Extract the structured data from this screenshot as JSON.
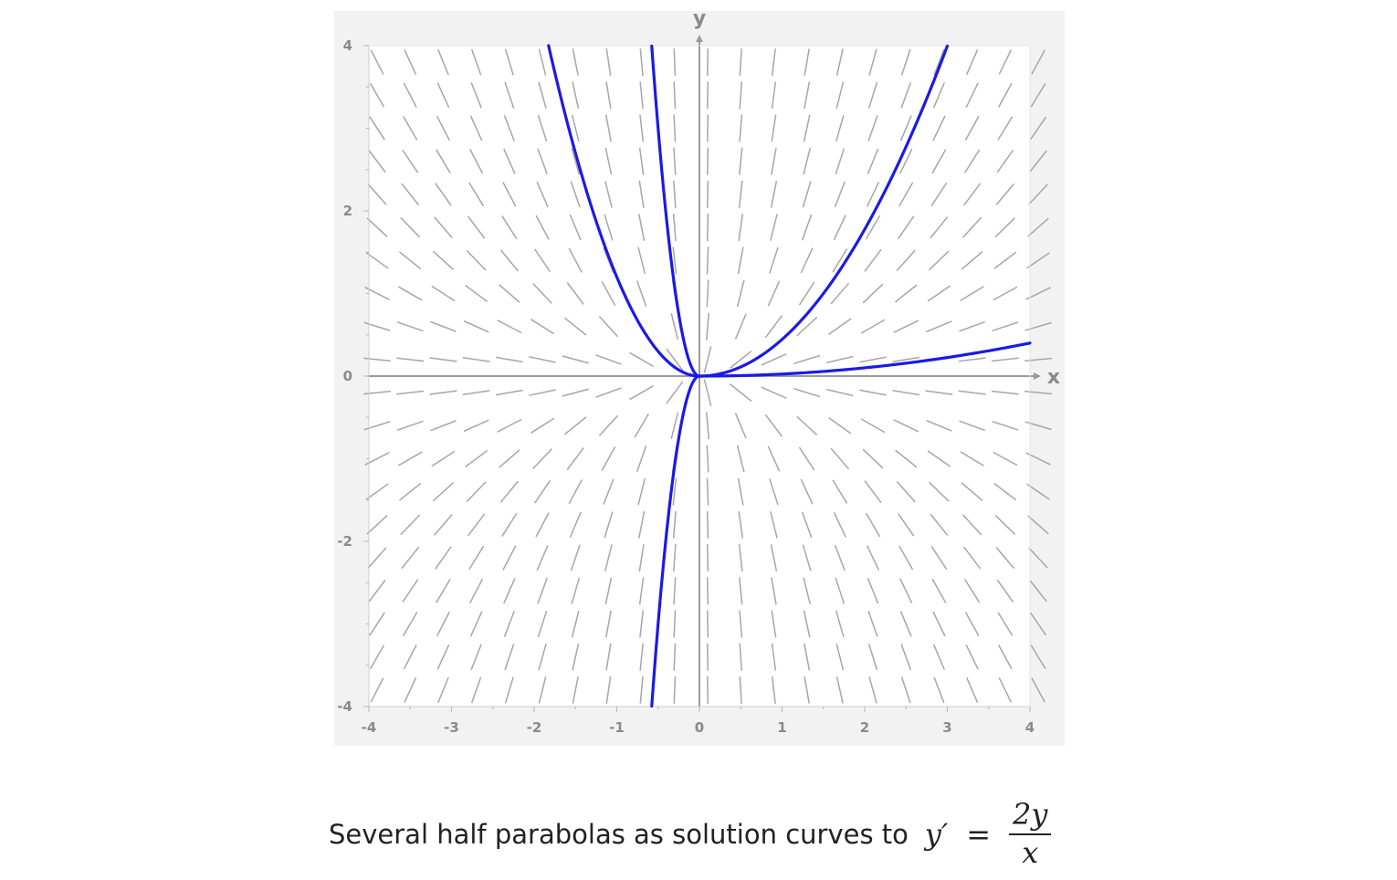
{
  "chart_data": {
    "type": "line",
    "subtype": "slope-field",
    "title": "",
    "xlabel": "x",
    "ylabel": "y",
    "xlim": [
      -4,
      4
    ],
    "ylim": [
      -4,
      4
    ],
    "x_ticks": [
      "-4",
      "-3",
      "-2",
      "-1",
      "0",
      "1",
      "2",
      "3",
      "4"
    ],
    "y_ticks": [
      "4",
      "2",
      "0",
      "-2",
      "-4"
    ],
    "x_tick_values": [
      -4,
      -3,
      -2,
      -1,
      0,
      1,
      2,
      3,
      4
    ],
    "y_tick_values": [
      4,
      2,
      0,
      -2,
      -4
    ],
    "slope_field": {
      "expression": "2y/x",
      "x_range": [
        -3.9,
        3.9
      ],
      "y_range": [
        -3.8,
        3.8
      ],
      "grid_step": 0.4
    },
    "series": [
      {
        "family": "y = C x^2",
        "C": 1.2,
        "x_range": [
          -1.826,
          0
        ]
      },
      {
        "family": "y = C x^2",
        "C": 12,
        "x_range": [
          -0.577,
          0
        ]
      },
      {
        "family": "y = C x^2",
        "C": -12,
        "x_range": [
          -0.577,
          0
        ]
      },
      {
        "family": "y = C x^2",
        "C": 0.444,
        "x_range": [
          0,
          3.0
        ]
      },
      {
        "family": "y = C x^2",
        "C": 0.025,
        "x_range": [
          0,
          4.0
        ]
      }
    ],
    "colors": {
      "curve": "#1a1ae6",
      "slope_marks": "#a6a6a6",
      "axes": "#9a9a9a",
      "plot_background": "#ffffff",
      "frame_background": "#f2f2f2"
    }
  },
  "caption": {
    "text": "Several half parabolas as solution curves to",
    "formula_lhs": "y′",
    "formula_eq": "=",
    "formula_num": "2y",
    "formula_den": "x"
  }
}
